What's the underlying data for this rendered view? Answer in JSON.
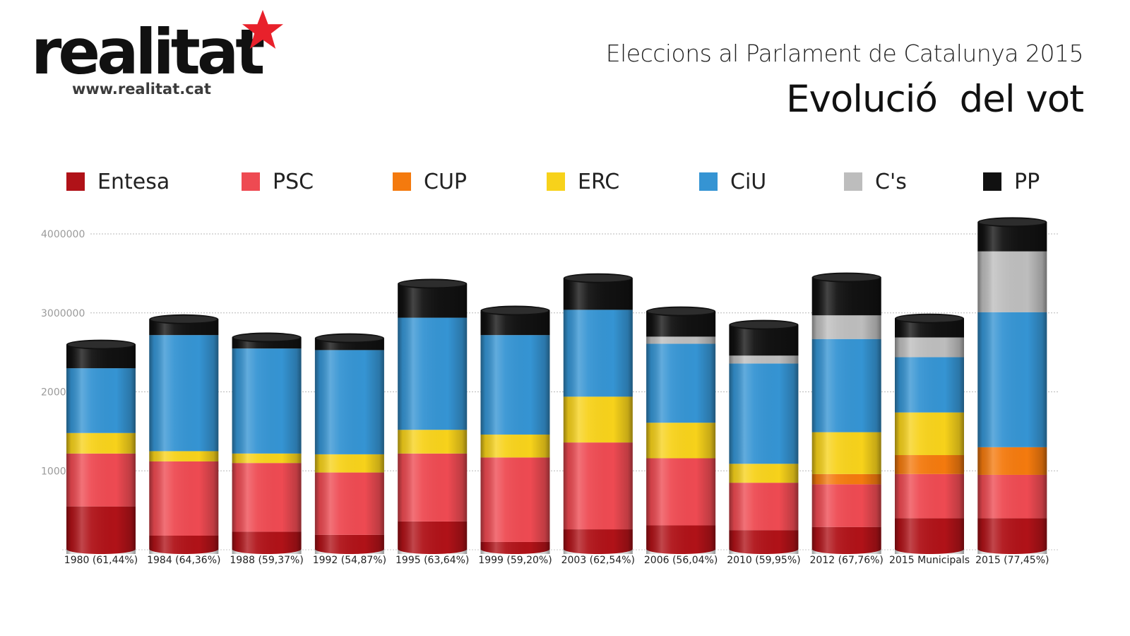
{
  "logo": {
    "word": "realitat",
    "url": "www.realitat.cat",
    "star_color": "#e8212b"
  },
  "header": {
    "title": "Eleccions al Parlament de Catalunya 2015",
    "subtitle": "Evolució  del vot"
  },
  "legend": [
    {
      "label": "Entesa",
      "color": "#b01218",
      "icon": "square-swatch"
    },
    {
      "label": "PSC",
      "color": "#ee4a52",
      "icon": "square-swatch"
    },
    {
      "label": "CUP",
      "color": "#f47a0e",
      "icon": "square-swatch"
    },
    {
      "label": "ERC",
      "color": "#f7d21b",
      "icon": "square-swatch"
    },
    {
      "label": "CiU",
      "color": "#3594d3",
      "icon": "square-swatch"
    },
    {
      "label": "C's",
      "color": "#bdbdbd",
      "icon": "square-swatch"
    },
    {
      "label": "PP",
      "color": "#111111",
      "icon": "square-swatch"
    }
  ],
  "chart_data": {
    "type": "bar",
    "stacked": true,
    "categories": [
      "1980 (61,44%)",
      "1984 (64,36%)",
      "1988 (59,37%)",
      "1992 (54,87%)",
      "1995 (63,64%)",
      "1999 (59,20%)",
      "2003 (62,54%)",
      "2006 (56,04%)",
      "2010 (59,95%)",
      "2012 (67,76%)",
      "2015 Municipals",
      "2015 (77,45%)"
    ],
    "series": [
      {
        "name": "Entesa",
        "color": "#b01218",
        "values": [
          540000,
          170000,
          220000,
          180000,
          350000,
          90000,
          250000,
          300000,
          240000,
          280000,
          390000,
          390000
        ]
      },
      {
        "name": "PSC",
        "color": "#ee4a52",
        "values": [
          670000,
          940000,
          870000,
          790000,
          860000,
          1070000,
          1100000,
          850000,
          600000,
          540000,
          560000,
          550000
        ]
      },
      {
        "name": "CUP",
        "color": "#f47a0e",
        "values": [
          0,
          0,
          0,
          0,
          0,
          0,
          0,
          0,
          0,
          130000,
          240000,
          350000
        ]
      },
      {
        "name": "ERC",
        "color": "#f7d21b",
        "values": [
          260000,
          130000,
          120000,
          230000,
          300000,
          290000,
          580000,
          450000,
          240000,
          530000,
          540000,
          0
        ]
      },
      {
        "name": "CiU",
        "color": "#3594d3",
        "values": [
          820000,
          1470000,
          1330000,
          1320000,
          1420000,
          1260000,
          1100000,
          1000000,
          1270000,
          1180000,
          700000,
          1710000
        ]
      },
      {
        "name": "C's",
        "color": "#bdbdbd",
        "values": [
          0,
          0,
          0,
          0,
          0,
          0,
          0,
          90000,
          100000,
          300000,
          250000,
          770000
        ]
      },
      {
        "name": "PP",
        "color": "#111111",
        "values": [
          300000,
          200000,
          140000,
          150000,
          430000,
          310000,
          400000,
          320000,
          390000,
          480000,
          240000,
          370000
        ]
      }
    ],
    "y_ticks": [
      "4000000",
      "3000000",
      "2000000",
      "1000000"
    ],
    "ylim": [
      0,
      4000000
    ],
    "grid": true,
    "legend_position": "top"
  }
}
